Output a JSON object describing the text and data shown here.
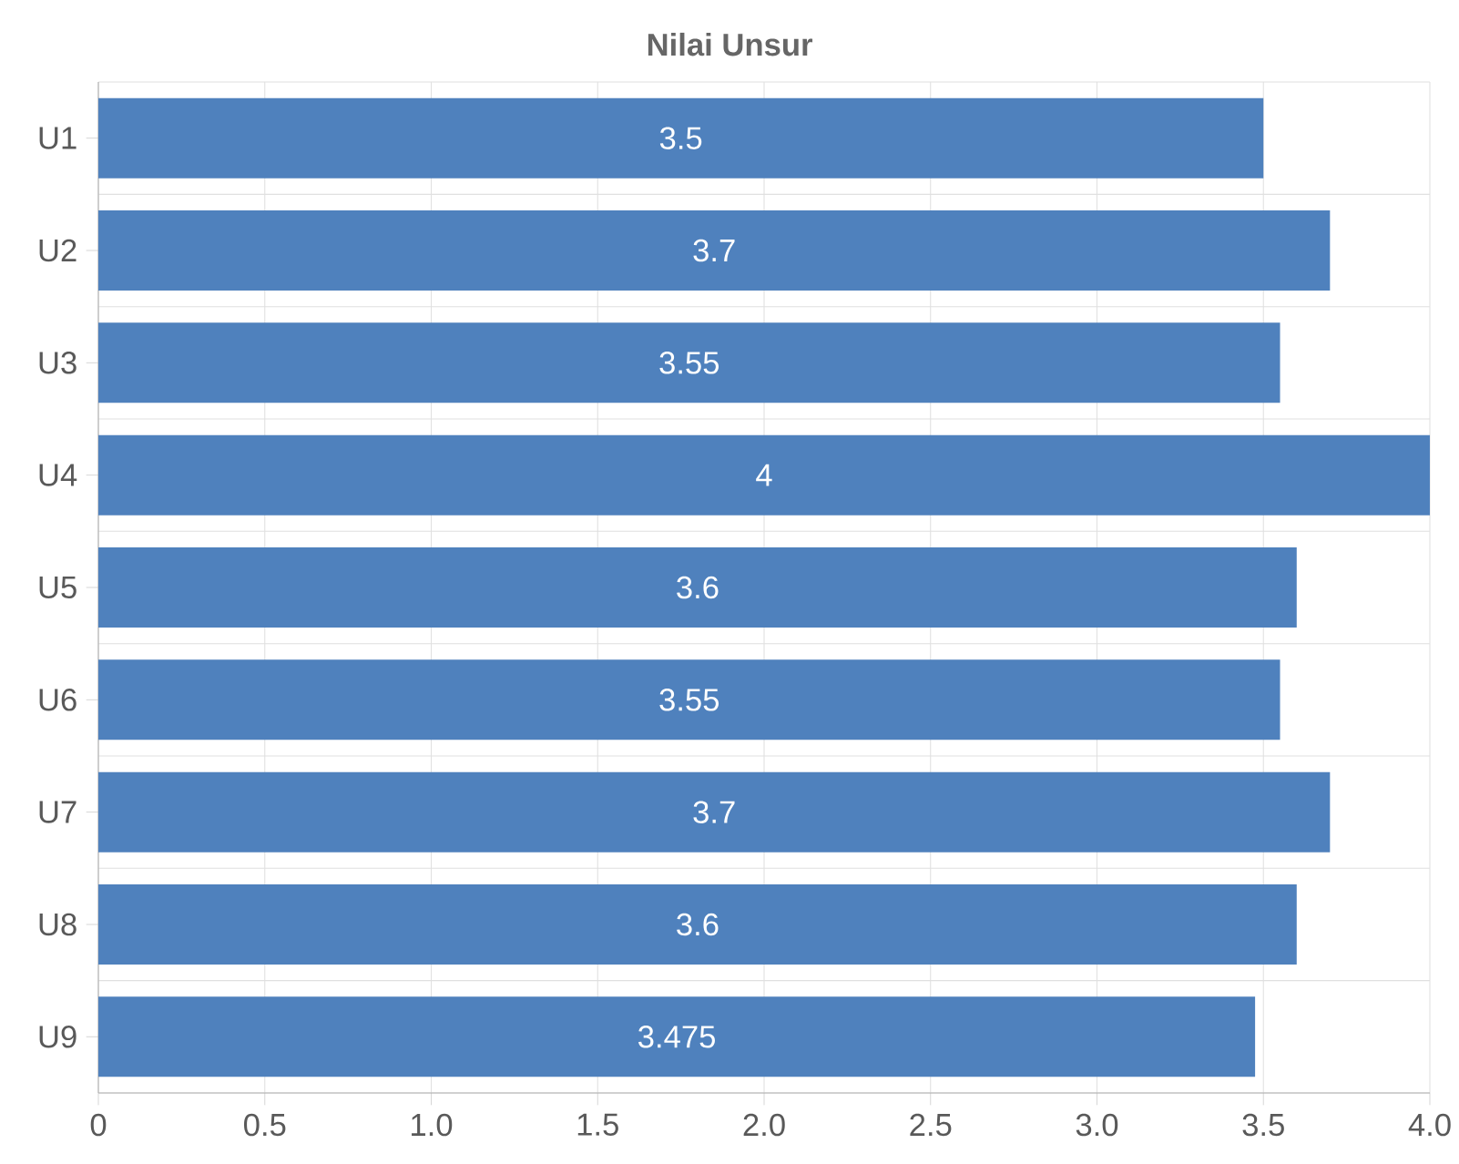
{
  "chart_data": {
    "type": "bar",
    "orientation": "horizontal",
    "title": "Nilai Unsur",
    "categories": [
      "U1",
      "U2",
      "U3",
      "U4",
      "U5",
      "U6",
      "U7",
      "U8",
      "U9"
    ],
    "values": [
      3.5,
      3.7,
      3.55,
      4,
      3.6,
      3.55,
      3.7,
      3.6,
      3.475
    ],
    "color": "#4f81bd",
    "data_labels": true,
    "grid": true,
    "xlim": [
      0,
      4
    ],
    "xticks": [
      0,
      0.5,
      {
        "value": 1,
        "label": "1.0"
      },
      1.5,
      {
        "value": 2,
        "label": "2.0"
      },
      2.5,
      {
        "value": 3,
        "label": "3.0"
      },
      3.5,
      {
        "value": 4,
        "label": "4.0"
      }
    ]
  }
}
